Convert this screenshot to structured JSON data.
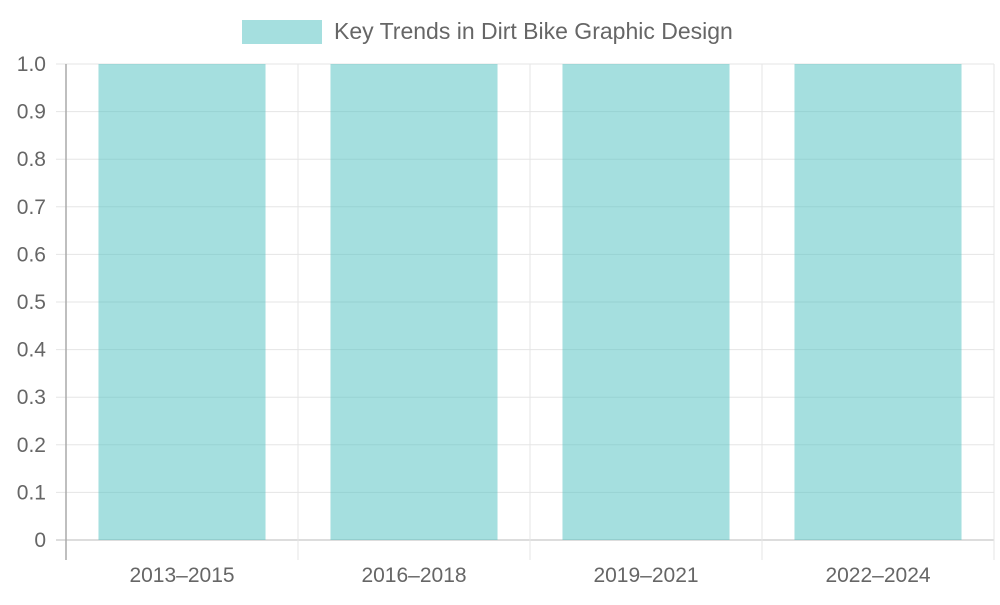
{
  "chart_data": {
    "type": "bar",
    "title": "",
    "xlabel": "",
    "ylabel": "",
    "categories": [
      "2013–2015",
      "2016–2018",
      "2019–2021",
      "2022–2024"
    ],
    "series": [
      {
        "name": "Key Trends in Dirt Bike Graphic Design",
        "values": [
          1,
          1,
          1,
          1
        ],
        "color": "rgba(75,192,192,0.5)"
      }
    ],
    "ylim": [
      0,
      1
    ],
    "yticks": [
      "0",
      "0.1",
      "0.2",
      "0.3",
      "0.4",
      "0.5",
      "0.6",
      "0.7",
      "0.8",
      "0.9",
      "1.0"
    ],
    "grid": true,
    "legend_position": "top"
  }
}
